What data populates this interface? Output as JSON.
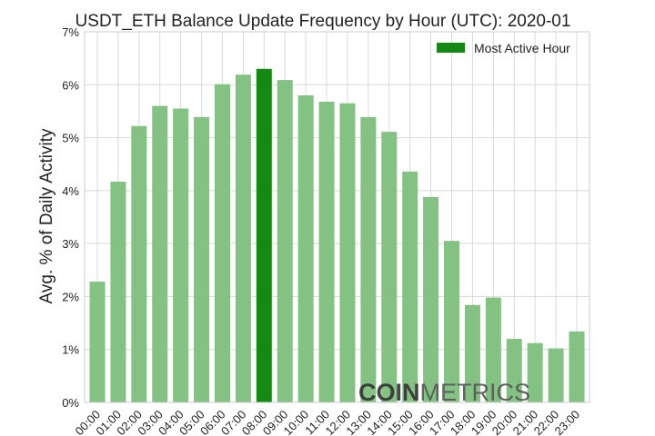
{
  "chart_data": {
    "type": "bar",
    "title": "USDT_ETH Balance Update Frequency by Hour (UTC): 2020-01",
    "xlabel": "",
    "ylabel": "Avg. % of Daily Activity",
    "categories": [
      "00:00",
      "01:00",
      "02:00",
      "03:00",
      "04:00",
      "05:00",
      "06:00",
      "07:00",
      "08:00",
      "09:00",
      "10:00",
      "11:00",
      "12:00",
      "13:00",
      "14:00",
      "15:00",
      "16:00",
      "17:00",
      "18:00",
      "19:00",
      "20:00",
      "21:00",
      "22:00",
      "23:00"
    ],
    "values": [
      2.28,
      4.17,
      5.22,
      5.6,
      5.55,
      5.39,
      6.01,
      6.19,
      6.3,
      6.09,
      5.8,
      5.68,
      5.65,
      5.39,
      5.11,
      4.36,
      3.88,
      3.05,
      1.84,
      1.98,
      1.2,
      1.12,
      1.02,
      1.34
    ],
    "highlight_index": 8,
    "ylim": [
      0,
      7
    ],
    "yticks": [
      "0%",
      "1%",
      "2%",
      "3%",
      "4%",
      "5%",
      "6%",
      "7%"
    ],
    "grid": true,
    "legend": {
      "label": "Most Active Hour",
      "placement": "top-right"
    },
    "colors": {
      "bar": "#83c283",
      "highlight": "#148a14",
      "grid": "#d9d9d9"
    },
    "watermark": {
      "bold": "COIN",
      "light": "METRICS"
    }
  }
}
